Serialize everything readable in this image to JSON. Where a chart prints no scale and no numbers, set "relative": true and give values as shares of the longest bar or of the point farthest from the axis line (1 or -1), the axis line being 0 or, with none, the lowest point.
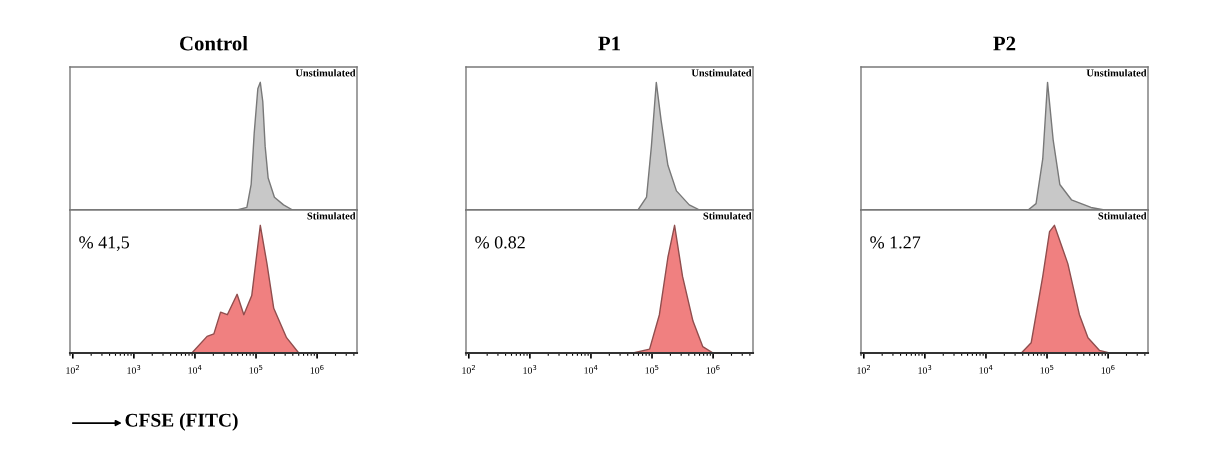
{
  "chart_data": [
    {
      "type": "area",
      "title": "Control",
      "relative": true,
      "log": "x",
      "tick_labels": false,
      "xlim": [
        90,
        4500000
      ],
      "annotations": [
        "Unstimulated"
      ],
      "series": [
        {
          "color": "#c8c8c8",
          "x": [
            100,
            49000,
            70800,
            83200,
            93300,
            107000,
            117500,
            129000,
            141000,
            158000,
            200000,
            282000,
            398000,
            4500000
          ],
          "values": [
            0,
            0,
            0.02,
            0.2,
            0.6,
            0.95,
            1,
            0.85,
            0.5,
            0.25,
            0.1,
            0.04,
            0,
            0
          ]
        }
      ]
    },
    {
      "type": "area",
      "title": "P1",
      "relative": true,
      "log": "x",
      "tick_labels": false,
      "xlim": [
        90,
        4500000
      ],
      "annotations": [
        "Unstimulated"
      ],
      "series": [
        {
          "color": "#c8c8c8",
          "x": [
            100,
            58900,
            81300,
            97700,
            117500,
            141000,
            182000,
            251000,
            407000,
            603000,
            4500000
          ],
          "values": [
            0,
            0,
            0.1,
            0.5,
            1,
            0.7,
            0.35,
            0.15,
            0.04,
            0,
            0
          ]
        }
      ]
    },
    {
      "type": "area",
      "title": "P2",
      "relative": true,
      "log": "x",
      "tick_labels": false,
      "xlim": [
        90,
        4500000
      ],
      "annotations": [
        "Unstimulated"
      ],
      "series": [
        {
          "color": "#c8c8c8",
          "x": [
            100,
            49000,
            66100,
            85100,
            102000,
            126000,
            162000,
            251000,
            525000,
            871000,
            4500000
          ],
          "values": [
            0,
            0,
            0.05,
            0.4,
            1,
            0.55,
            0.2,
            0.08,
            0.02,
            0,
            0
          ]
        }
      ]
    },
    {
      "type": "area",
      "relative": true,
      "log": "x",
      "tick_labels": "x",
      "xlim": [
        90,
        4500000
      ],
      "xlabel": "CFSE (FITC)",
      "annotations": [
        "Stimulated",
        "% 41,5"
      ],
      "xticks": [
        {
          "value": 100,
          "label": "10$^{2}$"
        },
        {
          "value": 1000,
          "label": "10$^{3}$"
        },
        {
          "value": 10000,
          "label": "10$^{4}$"
        },
        {
          "value": 100000,
          "label": "10$^{5}$"
        },
        {
          "value": 1000000,
          "label": "10$^{6}$"
        }
      ],
      "series": [
        {
          "color": "#f08080",
          "x": [
            100,
            8900,
            15800,
            20400,
            26300,
            33900,
            49000,
            63100,
            85100,
            117500,
            151000,
            195000,
            316000,
            501000,
            4500000
          ],
          "values": [
            0,
            0,
            0.13,
            0.15,
            0.32,
            0.3,
            0.46,
            0.3,
            0.45,
            1,
            0.7,
            0.35,
            0.12,
            0,
            0
          ]
        }
      ]
    },
    {
      "type": "area",
      "relative": true,
      "log": "x",
      "tick_labels": "x",
      "xlim": [
        90,
        4500000
      ],
      "annotations": [
        "Stimulated",
        "% 0.82"
      ],
      "xticks": [
        {
          "value": 100,
          "label": "10$^{2}$"
        },
        {
          "value": 1000,
          "label": "10$^{3}$"
        },
        {
          "value": 10000,
          "label": "10$^{4}$"
        },
        {
          "value": 100000,
          "label": "10$^{5}$"
        },
        {
          "value": 1000000,
          "label": "10$^{6}$"
        }
      ],
      "series": [
        {
          "color": "#f08080",
          "x": [
            100,
            49000,
            91200,
            132000,
            182000,
            234000,
            316000,
            468000,
            676000,
            1000000,
            4500000
          ],
          "values": [
            0,
            0,
            0.03,
            0.3,
            0.75,
            1,
            0.6,
            0.25,
            0.05,
            0,
            0
          ]
        }
      ]
    },
    {
      "type": "area",
      "relative": true,
      "log": "x",
      "tick_labels": "x",
      "xlim": [
        90,
        4500000
      ],
      "annotations": [
        "Stimulated",
        "% 1.27"
      ],
      "xticks": [
        {
          "value": 100,
          "label": "10$^{2}$"
        },
        {
          "value": 1000,
          "label": "10$^{3}$"
        },
        {
          "value": 10000,
          "label": "10$^{4}$"
        },
        {
          "value": 100000,
          "label": "10$^{5}$"
        },
        {
          "value": 1000000,
          "label": "10$^{6}$"
        }
      ],
      "series": [
        {
          "color": "#f08080",
          "x": [
            100,
            38000,
            55000,
            85100,
            110000,
            132000,
            219000,
            339000,
            468000,
            724000,
            1047000,
            4500000
          ],
          "values": [
            0,
            0,
            0.08,
            0.6,
            0.95,
            1,
            0.7,
            0.3,
            0.12,
            0.02,
            0,
            0
          ]
        }
      ]
    }
  ]
}
